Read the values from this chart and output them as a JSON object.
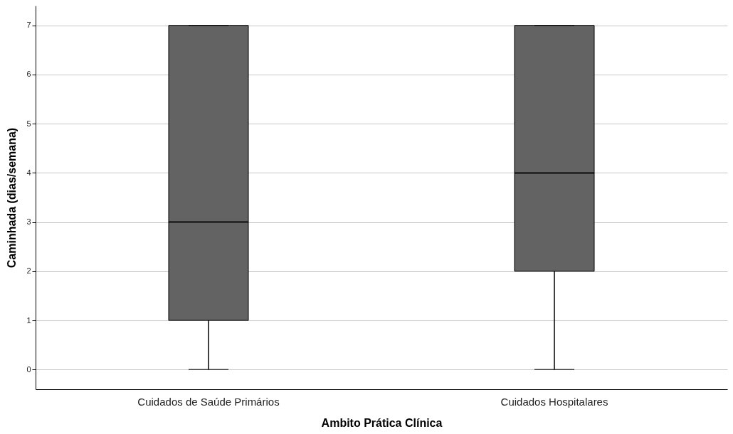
{
  "chart_data": {
    "type": "box",
    "xlabel": "Ambito Prática Clínica",
    "ylabel": "Caminhada (dias/semana)",
    "categories": [
      "Cuidados de Saúde Primários",
      "Cuidados Hospitalares"
    ],
    "color": "#636363",
    "boxes": [
      {
        "low": 0,
        "q1": 1,
        "median": 3,
        "q3": 7,
        "high": 7
      },
      {
        "low": 0,
        "q1": 2,
        "median": 4,
        "q3": 7,
        "high": 7
      }
    ],
    "ylim": [
      -0.4,
      7.4
    ],
    "yticks": [
      0,
      1,
      2,
      3,
      4,
      5,
      6,
      7
    ],
    "grid": "y"
  }
}
